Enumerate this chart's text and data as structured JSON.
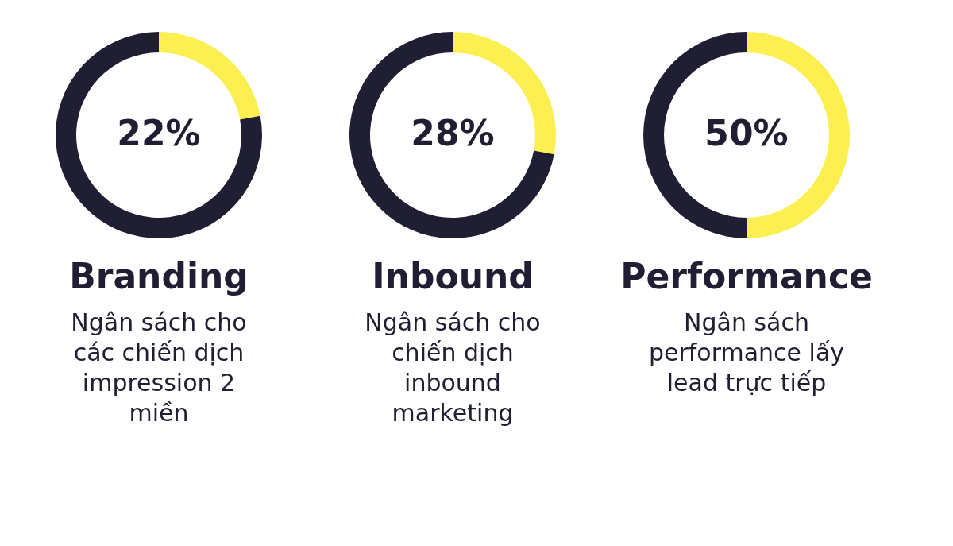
{
  "chart_data": [
    {
      "type": "donut",
      "title": "Branding",
      "subtitle": "Ngân sách cho\ncác chiến dịch\nimpression 2\nmiền",
      "categories": [
        null,
        null
      ],
      "values": [
        22,
        78
      ],
      "colors": [
        "#fbef52",
        "#201e33"
      ],
      "value_labels": [
        "22%",
        null
      ],
      "legend": false
    },
    {
      "type": "donut",
      "title": "Inbound",
      "subtitle": "Ngân sách cho\nchiến dịch\ninbound\nmarketing",
      "categories": [
        null,
        null
      ],
      "values": [
        28,
        72
      ],
      "colors": [
        "#fbef52",
        "#201e33"
      ],
      "value_labels": [
        "28%",
        null
      ],
      "legend": false
    },
    {
      "type": "donut",
      "title": "Performance",
      "subtitle": "Ngân sách\nperformance lấy\nlead trực tiếp",
      "categories": [
        null,
        null
      ],
      "values": [
        50,
        50
      ],
      "colors": [
        "#fbef52",
        "#201e33"
      ],
      "value_labels": [
        "50%",
        null
      ],
      "legend": false
    }
  ]
}
